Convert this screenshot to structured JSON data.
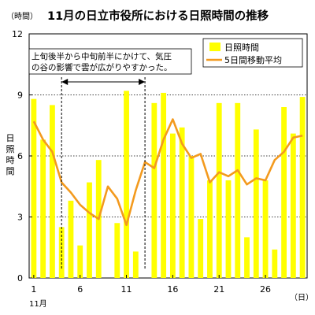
{
  "chart_data": {
    "type": "bar",
    "title": "11月の日立市役所における日照時間の推移",
    "y_unit": "（時間）",
    "ylabel": "日照時間",
    "x_unit": "（日）",
    "x_month_label": "11月",
    "x_tick_labels": [
      "1",
      "6",
      "11",
      "16",
      "21",
      "26"
    ],
    "x_tick_days": [
      1,
      6,
      11,
      16,
      21,
      26
    ],
    "y_ticks": [
      0,
      3,
      6,
      9,
      12
    ],
    "ylim": [
      0,
      12
    ],
    "days": [
      1,
      2,
      3,
      4,
      5,
      6,
      7,
      8,
      9,
      10,
      11,
      12,
      13,
      14,
      15,
      16,
      17,
      18,
      19,
      20,
      21,
      22,
      23,
      24,
      25,
      26,
      27,
      28,
      29,
      30
    ],
    "series": [
      {
        "name": "日照時間",
        "type": "bar",
        "color": "#FFFF00",
        "values": [
          8.8,
          6.8,
          8.5,
          2.5,
          3.8,
          1.6,
          4.7,
          5.8,
          0,
          2.7,
          9.2,
          1.3,
          0,
          8.6,
          9.1,
          7.1,
          7.4,
          6.0,
          2.9,
          4.8,
          8.6,
          4.8,
          8.6,
          2.0,
          7.3,
          4.8,
          1.4,
          8.4,
          7.1,
          8.9
        ]
      },
      {
        "name": "5日間移動平均",
        "type": "line",
        "color": "#F39A1E",
        "values": [
          7.7,
          6.8,
          6.2,
          4.7,
          4.2,
          3.6,
          3.2,
          2.9,
          4.5,
          3.9,
          2.6,
          4.3,
          5.7,
          5.4,
          6.8,
          7.8,
          6.6,
          5.9,
          6.1,
          4.7,
          5.2,
          5.0,
          5.3,
          4.6,
          4.9,
          4.8,
          5.8,
          6.2,
          6.9,
          7.0
        ]
      }
    ],
    "annotation": {
      "lines": [
        "上旬後半から中旬前半にかけて、気圧",
        "の谷の影響で雲が広がりやすかった。"
      ],
      "arrow_from_day": 4,
      "arrow_to_day": 13
    },
    "grid": "horizontal-dotted",
    "legend": "top-right"
  }
}
